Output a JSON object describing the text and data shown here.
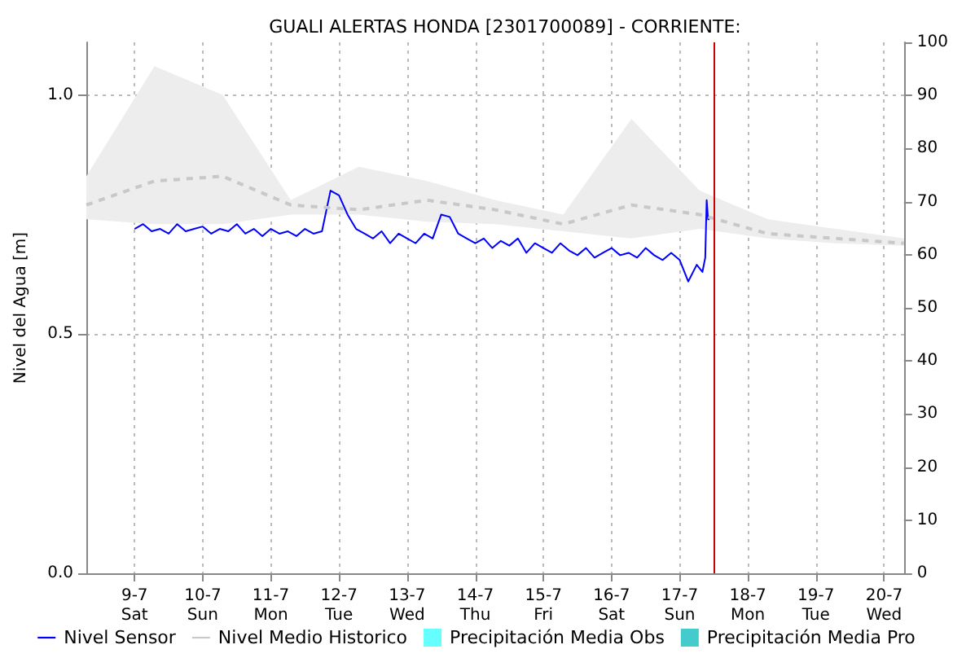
{
  "chart_data": {
    "type": "line",
    "title": "GUALI ALERTAS HONDA [2301700089] - CORRIENTE:",
    "ylabel": "Nivel del Agua [m]",
    "xlim": [
      "--07-08T07:00",
      "--07-20T07:00"
    ],
    "xticks": [
      {
        "value": "--07-09",
        "label": "9-7\nSat"
      },
      {
        "value": "--07-10",
        "label": "10-7\nSun"
      },
      {
        "value": "--07-11",
        "label": "11-7\nMon"
      },
      {
        "value": "--07-12",
        "label": "12-7\nTue"
      },
      {
        "value": "--07-13",
        "label": "13-7\nWed"
      },
      {
        "value": "--07-14",
        "label": "14-7\nThu"
      },
      {
        "value": "--07-15",
        "label": "15-7\nFri"
      },
      {
        "value": "--07-16",
        "label": "16-7\nSat"
      },
      {
        "value": "--07-17",
        "label": "17-7\nSun"
      },
      {
        "value": "--07-18",
        "label": "18-7\nMon"
      },
      {
        "value": "--07-19",
        "label": "19-7\nTue"
      },
      {
        "value": "--07-20",
        "label": "20-7\nWed"
      }
    ],
    "ylim": [
      0,
      1.11
    ],
    "yticks": [
      {
        "value": 0,
        "label": "0.0"
      },
      0.5,
      {
        "value": 1,
        "label": "1.0"
      }
    ],
    "y2lim": [
      0,
      100
    ],
    "y2ticks": [
      0,
      10,
      20,
      30,
      40,
      50,
      60,
      70,
      80,
      90,
      100
    ],
    "grid": true,
    "legend": "bottom",
    "series": [
      {
        "name": "Nivel Sensor",
        "color": "#0000ff",
        "line_style": "solid",
        "x": [
          "--07-09T00:00",
          "--07-09T03:00",
          "--07-09T06:00",
          "--07-09T09:00",
          "--07-09T12:00",
          "--07-09T15:00",
          "--07-09T18:00",
          "--07-09T21:00",
          "--07-10T00:00",
          "--07-10T03:00",
          "--07-10T06:00",
          "--07-10T09:00",
          "--07-10T12:00",
          "--07-10T15:00",
          "--07-10T18:00",
          "--07-10T21:00",
          "--07-11T00:00",
          "--07-11T03:00",
          "--07-11T06:00",
          "--07-11T09:00",
          "--07-11T12:00",
          "--07-11T15:00",
          "--07-11T18:00",
          "--07-11T21:00",
          "--07-12T00:00",
          "--07-12T03:00",
          "--07-12T06:00",
          "--07-12T09:00",
          "--07-12T12:00",
          "--07-12T15:00",
          "--07-12T18:00",
          "--07-12T21:00",
          "--07-13T00:00",
          "--07-13T03:00",
          "--07-13T06:00",
          "--07-13T09:00",
          "--07-13T12:00",
          "--07-13T15:00",
          "--07-13T18:00",
          "--07-13T21:00",
          "--07-14T00:00",
          "--07-14T03:00",
          "--07-14T06:00",
          "--07-14T09:00",
          "--07-14T12:00",
          "--07-14T15:00",
          "--07-14T18:00",
          "--07-14T21:00",
          "--07-15T00:00",
          "--07-15T03:00",
          "--07-15T06:00",
          "--07-15T09:00",
          "--07-15T12:00",
          "--07-15T15:00",
          "--07-15T18:00",
          "--07-15T21:00",
          "--07-16T00:00",
          "--07-16T03:00",
          "--07-16T06:00",
          "--07-16T09:00",
          "--07-16T12:00",
          "--07-16T15:00",
          "--07-16T18:00",
          "--07-16T21:00",
          "--07-17T00:00",
          "--07-17T03:00",
          "--07-17T06:00",
          "--07-17T08:00",
          "--07-17T09:00",
          "--07-17T09:30",
          "--07-17T10:00",
          "--07-17T10:30"
        ],
        "values": [
          0.72,
          0.73,
          0.715,
          0.72,
          0.71,
          0.73,
          0.715,
          0.72,
          0.725,
          0.71,
          0.72,
          0.715,
          0.73,
          0.71,
          0.72,
          0.705,
          0.72,
          0.71,
          0.715,
          0.705,
          0.72,
          0.71,
          0.715,
          0.8,
          0.79,
          0.75,
          0.72,
          0.71,
          0.7,
          0.715,
          0.69,
          0.71,
          0.7,
          0.69,
          0.71,
          0.7,
          0.75,
          0.745,
          0.71,
          0.7,
          0.69,
          0.7,
          0.68,
          0.695,
          0.685,
          0.7,
          0.67,
          0.69,
          0.68,
          0.67,
          0.69,
          0.675,
          0.665,
          0.68,
          0.66,
          0.67,
          0.68,
          0.665,
          0.67,
          0.66,
          0.68,
          0.665,
          0.655,
          0.67,
          0.655,
          0.61,
          0.645,
          0.63,
          0.66,
          0.78,
          0.74,
          0.74
        ]
      },
      {
        "name": "Nivel Medio Historico",
        "color": "#c8c8c8",
        "line_style": "dashed",
        "x": [
          "--07-08T07:00",
          "--07-09T07:00",
          "--07-10T07:00",
          "--07-11T07:00",
          "--07-12T07:00",
          "--07-13T07:00",
          "--07-14T07:00",
          "--07-15T07:00",
          "--07-16T07:00",
          "--07-17T07:00",
          "--07-18T07:00",
          "--07-19T07:00",
          "--07-20T07:00"
        ],
        "values": [
          0.77,
          0.82,
          0.83,
          0.77,
          0.76,
          0.78,
          0.76,
          0.73,
          0.77,
          0.75,
          0.71,
          0.7,
          0.69
        ],
        "lower": [
          0.74,
          0.73,
          0.73,
          0.75,
          0.75,
          0.735,
          0.73,
          0.715,
          0.7,
          0.72,
          0.7,
          0.69,
          0.685
        ],
        "upper": [
          0.83,
          1.06,
          1.0,
          0.78,
          0.85,
          0.82,
          0.78,
          0.75,
          0.95,
          0.8,
          0.74,
          0.72,
          0.7
        ]
      },
      {
        "name": "Precipitación Media Obs",
        "type": "bar",
        "color": "#66ffff"
      },
      {
        "name": "Precipitación Media Pro",
        "type": "bar",
        "color": "#44cccc"
      }
    ],
    "ref_lines": [
      {
        "axis": "x",
        "value": "--07-17T12:00",
        "color": "#cc0000",
        "line_style": "solid"
      }
    ]
  }
}
